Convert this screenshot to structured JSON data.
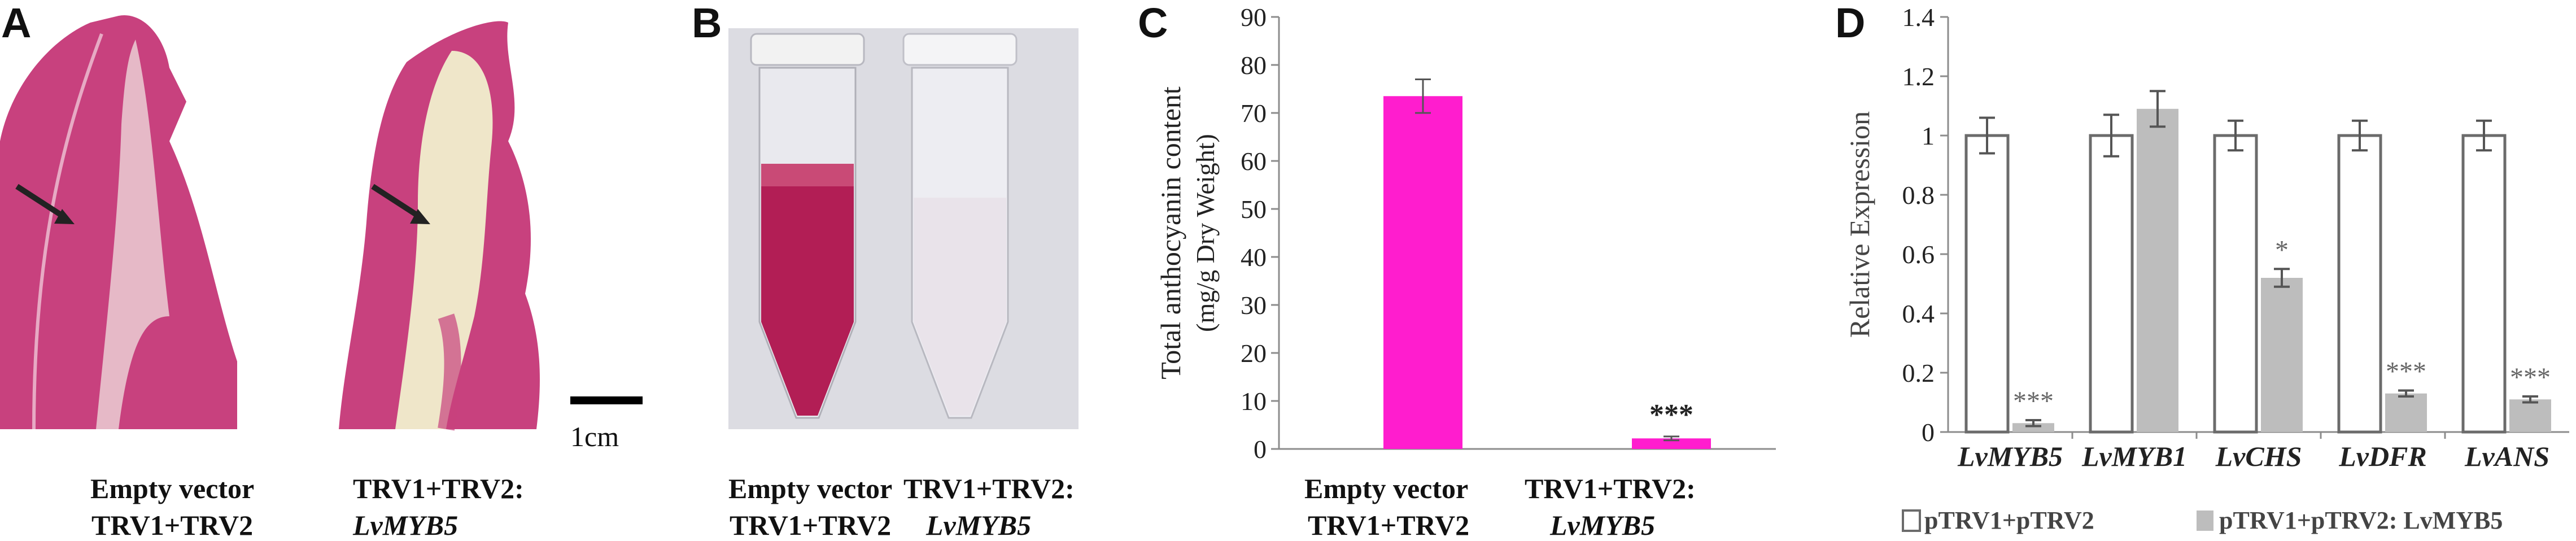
{
  "panels": {
    "a": {
      "letter": "A",
      "scale_label": "1cm",
      "caption_left": [
        "Empty vector",
        "TRV1+TRV2"
      ],
      "caption_right": [
        "TRV1+TRV2:",
        "LvMYB5"
      ]
    },
    "b": {
      "letter": "B",
      "caption_left": [
        "Empty vector",
        "TRV1+TRV2"
      ],
      "caption_right": [
        "TRV1+TRV2:",
        "LvMYB5"
      ]
    },
    "c": {
      "letter": "C",
      "caption_left": [
        "Empty vector",
        "TRV1+TRV2"
      ],
      "caption_right": [
        "TRV1+TRV2:",
        "LvMYB5"
      ]
    },
    "d": {
      "letter": "D"
    }
  },
  "colors": {
    "petal": "#c8417e",
    "bar_c": "#ff1dce",
    "open_bar_stroke": "#6b6b6b",
    "gray_bar": "#bdbdbd",
    "axis": "#8c8c8c"
  },
  "chart_data": [
    {
      "type": "bar",
      "panel": "C",
      "categories": [
        "Empty vector TRV1+TRV2",
        "TRV1+TRV2: LvMYB5"
      ],
      "values": [
        73.5,
        2.2
      ],
      "errors": [
        3.5,
        0.4
      ],
      "ylabel_line1": "Total  anthocyanin  content",
      "ylabel_line2": "(mg/g Dry Weight)",
      "ylim": [
        0,
        90
      ],
      "yticks": [
        "0",
        "10",
        "20",
        "30",
        "40",
        "50",
        "60",
        "70",
        "80",
        "90"
      ],
      "annotations": [
        "",
        "***"
      ]
    },
    {
      "type": "bar",
      "panel": "D",
      "categories": [
        "LvMYB5",
        "LvMYB1",
        "LvCHS",
        "LvDFR",
        "LvANS"
      ],
      "series": [
        {
          "name": "pTRV1+pTRV2",
          "values": [
            1.0,
            1.0,
            1.0,
            1.0,
            1.0
          ],
          "errors": [
            0.06,
            0.07,
            0.05,
            0.05,
            0.05
          ]
        },
        {
          "name": "pTRV1+pTRV2: LvMYB5",
          "values": [
            0.03,
            1.09,
            0.52,
            0.13,
            0.11
          ],
          "errors": [
            0.01,
            0.06,
            0.03,
            0.01,
            0.01
          ]
        }
      ],
      "annotations": [
        "***",
        "",
        "*",
        "***",
        "***"
      ],
      "ylabel": "Relative Expression",
      "ylim": [
        0,
        1.4
      ],
      "yticks": [
        "0",
        "0.2",
        "0.4",
        "0.6",
        "0.8",
        "1",
        "1.2",
        "1.4"
      ],
      "legend_position": "bottom"
    }
  ]
}
